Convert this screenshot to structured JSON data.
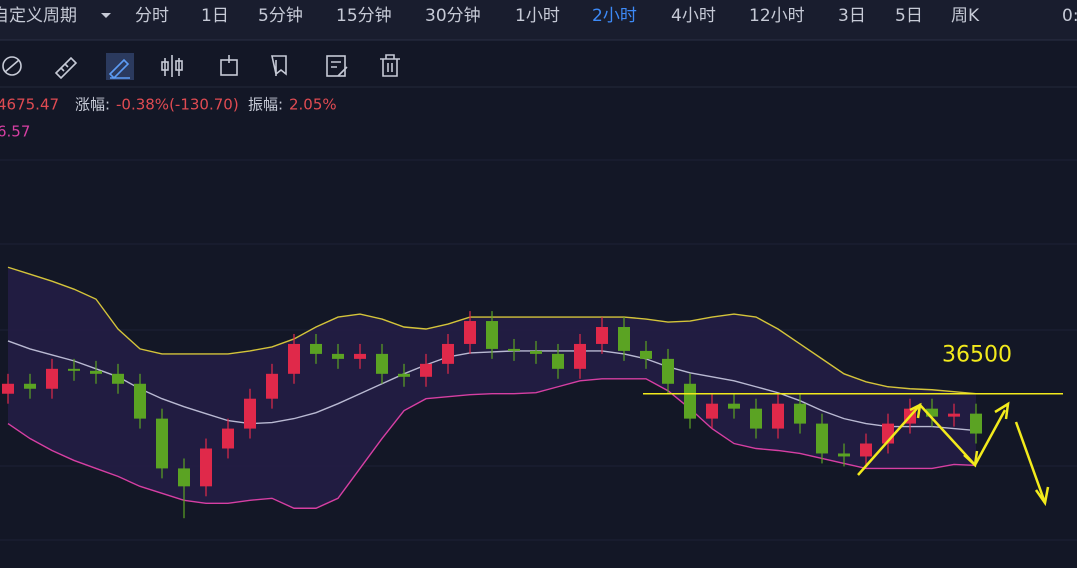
{
  "toolbar": {
    "period_menu": "自定义周期",
    "periods": [
      "分时",
      "1日",
      "5分钟",
      "15分钟",
      "30分钟",
      "1小时",
      "2小时",
      "4小时",
      "12小时",
      "3日",
      "5日",
      "周K"
    ],
    "active_period": "2小时",
    "clock": "0:"
  },
  "info": {
    "price": "4675.47",
    "change_label": "涨幅:",
    "change": "-0.38%(-130.70)",
    "amplitude_label": "振幅:",
    "amplitude": "2.05%",
    "indicator": "6.57"
  },
  "chart_data": {
    "type": "candlestick",
    "ylim": [
      34400,
      40160
    ],
    "up_color": "#e0294a",
    "down_color": "#5ba323",
    "open": [
      36500,
      36620,
      36560,
      36800,
      36776,
      36740,
      36620,
      36200,
      35600,
      35384,
      35840,
      36080,
      36440,
      36740,
      37100,
      36980,
      36920,
      36980,
      36740,
      36704,
      36860,
      37100,
      37376,
      37040,
      37016,
      36980,
      36800,
      37100,
      37304,
      37016,
      36920,
      36620,
      36200,
      36380,
      36320,
      36080,
      36380,
      36140,
      35780,
      35744,
      35900,
      36140,
      36320,
      36224,
      36260
    ],
    "high": [
      36740,
      36740,
      36920,
      36920,
      36896,
      36860,
      36740,
      36320,
      35720,
      35960,
      36200,
      36560,
      36860,
      37220,
      37220,
      37100,
      37100,
      37100,
      36860,
      36980,
      37220,
      37496,
      37496,
      37160,
      37136,
      37100,
      37220,
      37424,
      37424,
      37136,
      37040,
      36740,
      36500,
      36500,
      36440,
      36500,
      36500,
      36260,
      35900,
      36020,
      36260,
      36440,
      36440,
      36380,
      36380
    ],
    "low": [
      36380,
      36440,
      36440,
      36656,
      36620,
      36500,
      36080,
      35480,
      35000,
      35264,
      35720,
      35960,
      36320,
      36620,
      36860,
      36800,
      36800,
      36620,
      36584,
      36584,
      36740,
      36980,
      36920,
      36896,
      36860,
      36680,
      36680,
      36980,
      36896,
      36800,
      36500,
      36080,
      36080,
      36200,
      35960,
      35960,
      36020,
      35660,
      35624,
      35624,
      35780,
      36020,
      36104,
      36104,
      35900
    ],
    "close": [
      36620,
      36560,
      36800,
      36776,
      36740,
      36620,
      36200,
      35600,
      35384,
      35840,
      36080,
      36440,
      36740,
      37100,
      36980,
      36920,
      36980,
      36740,
      36704,
      36860,
      37100,
      37376,
      37040,
      37016,
      36980,
      36800,
      37100,
      37304,
      37016,
      36920,
      36620,
      36200,
      36380,
      36320,
      36080,
      36380,
      36140,
      35780,
      35744,
      35900,
      36140,
      36320,
      36224,
      36260,
      36020
    ],
    "bollinger": {
      "fill": "#241d45",
      "upper": {
        "color": "#d4c43a",
        "values": [
          38024,
          37940,
          37856,
          37760,
          37640,
          37280,
          37040,
          36980,
          36980,
          36980,
          36980,
          37016,
          37064,
          37160,
          37304,
          37424,
          37460,
          37400,
          37304,
          37280,
          37340,
          37424,
          37424,
          37424,
          37424,
          37424,
          37424,
          37424,
          37424,
          37400,
          37364,
          37376,
          37424,
          37460,
          37424,
          37280,
          37100,
          36920,
          36740,
          36644,
          36584,
          36560,
          36548,
          36524,
          36500
        ]
      },
      "middle": {
        "color": "#b9b9d2",
        "values": [
          37136,
          37040,
          36968,
          36896,
          36800,
          36704,
          36560,
          36440,
          36344,
          36260,
          36176,
          36140,
          36152,
          36200,
          36272,
          36380,
          36500,
          36620,
          36740,
          36848,
          36944,
          36992,
          37004,
          37016,
          37016,
          37016,
          37016,
          37016,
          36980,
          36920,
          36824,
          36752,
          36704,
          36656,
          36584,
          36512,
          36416,
          36296,
          36200,
          36140,
          36104,
          36104,
          36104,
          36080,
          36056
        ]
      },
      "lower": {
        "color": "#d63fa3",
        "values": [
          36140,
          35960,
          35816,
          35696,
          35600,
          35504,
          35384,
          35300,
          35216,
          35180,
          35180,
          35216,
          35240,
          35120,
          35120,
          35240,
          35600,
          35960,
          36296,
          36440,
          36464,
          36488,
          36500,
          36500,
          36512,
          36584,
          36656,
          36680,
          36680,
          36680,
          36536,
          36320,
          36080,
          35900,
          35840,
          35816,
          35780,
          35720,
          35660,
          35600,
          35600,
          35600,
          35600,
          35648,
          35636
        ]
      }
    },
    "level": 36500,
    "level_color": "#f2ea1c"
  }
}
